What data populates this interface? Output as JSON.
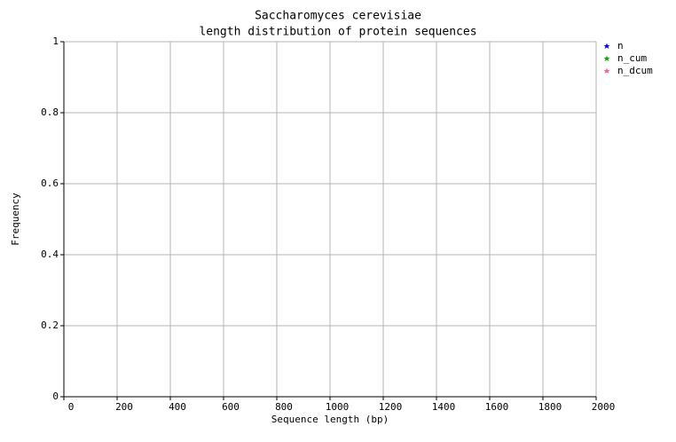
{
  "chart_data": {
    "type": "line",
    "title": "Saccharomyces cerevisiae",
    "subtitle": "length distribution of protein sequences",
    "x_label": "Sequence length (bp)",
    "y_label": "Frequency",
    "xlim": [
      0,
      2000
    ],
    "xticks": [
      0,
      200,
      400,
      600,
      800,
      1000,
      1200,
      1400,
      1600,
      1800,
      2000
    ],
    "ylim": [
      0,
      1
    ],
    "yticks": [
      0,
      0.2,
      0.4,
      0.6,
      0.8,
      1
    ],
    "grid": true,
    "legend": "right",
    "series": [
      {
        "name": "n",
        "color": "#0000ff"
      },
      {
        "name": "n_cum",
        "color": "#00b000"
      },
      {
        "name": "n_dcum",
        "color": "#ff5a8c"
      }
    ]
  }
}
